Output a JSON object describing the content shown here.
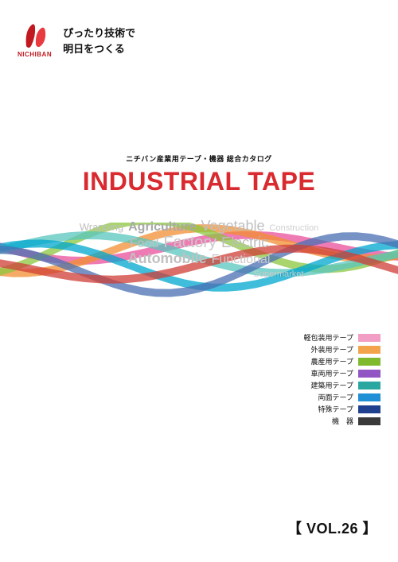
{
  "brand": {
    "name": "NICHIBAN",
    "name_color": "#c01920",
    "logo_left_color": "#c01920",
    "logo_right_color": "#e83a3f",
    "tagline_line1": "ぴったり技術で",
    "tagline_line2": "明日をつくる",
    "tagline_color": "#111111"
  },
  "title": {
    "subtitle": "ニチバン産業用テープ・機器 総合カタログ",
    "subtitle_color": "#111111",
    "main": "INDUSTRIAL TAPE",
    "main_color": "#d82a2f"
  },
  "ribbons": {
    "colors": [
      "#e94f9b",
      "#f18f32",
      "#8cc73f",
      "#58c5bd",
      "#00a7cf",
      "#4a6fb3",
      "#cf3d35"
    ],
    "opacity": 0.75
  },
  "keywords": {
    "row1": [
      {
        "text": "Wrapping",
        "color": "#bfbfbf",
        "size": 13,
        "weight": 400
      },
      {
        "text": "Agriculture",
        "color": "#a9a9a9",
        "size": 16,
        "weight": 600
      },
      {
        "text": "Vegetable",
        "color": "#bfbfbf",
        "size": 18,
        "weight": 300
      },
      {
        "text": "Construction",
        "color": "#d0d0d0",
        "size": 11,
        "weight": 400
      }
    ],
    "row2": [
      {
        "text": "Food",
        "color": "#bfbfbf",
        "size": 16,
        "weight": 300
      },
      {
        "text": "Factory",
        "color": "#c8c8c8",
        "size": 20,
        "weight": 300
      },
      {
        "text": "Electric",
        "color": "#bcbcbc",
        "size": 18,
        "weight": 300
      }
    ],
    "row3": [
      {
        "text": "Automobile",
        "color": "#c0c0c0",
        "size": 18,
        "weight": 600
      },
      {
        "text": "Functional",
        "color": "#c8c8c8",
        "size": 16,
        "weight": 300
      }
    ],
    "row4": [
      {
        "text": "Supermarket",
        "color": "#cccccc",
        "size": 11,
        "weight": 400
      }
    ]
  },
  "legend": {
    "label_color": "#111111",
    "items": [
      {
        "label": "軽包装用テープ",
        "color": "#f29ec4"
      },
      {
        "label": "外装用テープ",
        "color": "#f3a34b"
      },
      {
        "label": "農産用テープ",
        "color": "#7fb92e"
      },
      {
        "label": "車両用テープ",
        "color": "#9256c4"
      },
      {
        "label": "建築用テープ",
        "color": "#2aa7a1"
      },
      {
        "label": "両面テープ",
        "color": "#1f8fd6"
      },
      {
        "label": "特殊テープ",
        "color": "#1f3f8f"
      },
      {
        "label": "機　器",
        "color": "#3a3a3a"
      }
    ]
  },
  "volume": {
    "text": "【 VOL.26 】",
    "color": "#111111"
  }
}
